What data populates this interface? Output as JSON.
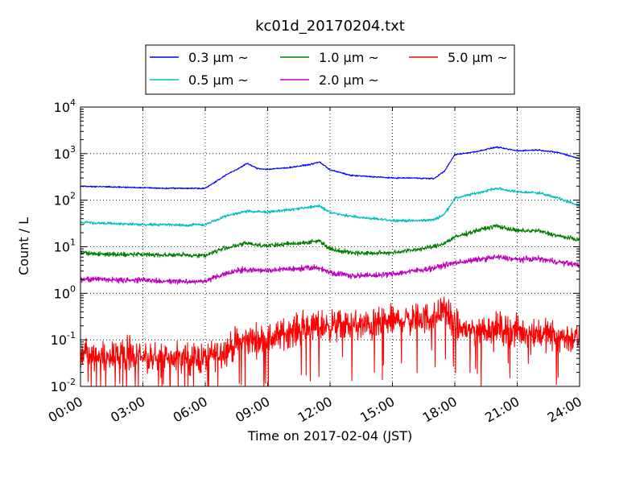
{
  "chart_data": {
    "type": "line",
    "title": "kc01d_20170204.txt",
    "xlabel": "Time on 2017-02-04 (JST)",
    "ylabel": "Count / L",
    "yscale": "log",
    "ylim": [
      0.01,
      10000
    ],
    "xlim": [
      "00:00",
      "24:00"
    ],
    "xticks": [
      "00:00",
      "03:00",
      "06:00",
      "09:00",
      "12:00",
      "15:00",
      "18:00",
      "21:00",
      "24:00"
    ],
    "yticks": [
      {
        "base": "10",
        "exp": "-2"
      },
      {
        "base": "10",
        "exp": "-1"
      },
      {
        "base": "10",
        "exp": "0"
      },
      {
        "base": "10",
        "exp": "1"
      },
      {
        "base": "10",
        "exp": "2"
      },
      {
        "base": "10",
        "exp": "3"
      },
      {
        "base": "10",
        "exp": "4"
      }
    ],
    "grid": true,
    "legend_position": "top-center",
    "x_hours": [
      0,
      1,
      2,
      3,
      4,
      5,
      6,
      6.5,
      7,
      7.5,
      8,
      8.5,
      9,
      10,
      11,
      11.5,
      12,
      13,
      14,
      15,
      16,
      17,
      17.5,
      18,
      19,
      20,
      21,
      22,
      23,
      24
    ],
    "series": [
      {
        "name": "0.3 µm ~",
        "color": "#0000ff",
        "noise": 0.012,
        "values": [
          200,
          195,
          190,
          185,
          180,
          180,
          180,
          250,
          350,
          450,
          620,
          480,
          460,
          500,
          580,
          660,
          450,
          340,
          320,
          300,
          300,
          290,
          420,
          950,
          1100,
          1380,
          1150,
          1200,
          1050,
          780
        ]
      },
      {
        "name": "0.5 µm ~",
        "color": "#00bfbf",
        "noise": 0.025,
        "values": [
          33,
          32,
          31,
          30,
          30,
          29,
          30,
          37,
          45,
          52,
          58,
          56,
          56,
          62,
          70,
          75,
          55,
          45,
          40,
          37,
          36,
          38,
          50,
          110,
          140,
          180,
          150,
          145,
          110,
          75
        ]
      },
      {
        "name": "1.0 µm ~",
        "color": "#008000",
        "noise": 0.04,
        "values": [
          7.5,
          7,
          6.8,
          6.8,
          6.7,
          6.6,
          6.5,
          8,
          9.5,
          10.5,
          12,
          11,
          10.5,
          11.5,
          12.5,
          13.5,
          9,
          7.5,
          7.2,
          7.5,
          8.5,
          10,
          12,
          16,
          22,
          28,
          22,
          22,
          17,
          14
        ]
      },
      {
        "name": "2.0 µm ~",
        "color": "#bf00bf",
        "noise": 0.05,
        "values": [
          2,
          2,
          1.9,
          1.9,
          1.85,
          1.8,
          1.8,
          2.2,
          2.7,
          3,
          3.2,
          3.1,
          3.1,
          3.3,
          3.5,
          3.5,
          2.8,
          2.4,
          2.4,
          2.6,
          3,
          3.5,
          4,
          4.5,
          5.2,
          6,
          5.3,
          5.5,
          4.7,
          4
        ]
      },
      {
        "name": "5.0 µm ~",
        "color": "#ff0000",
        "noise": 0.28,
        "values": [
          0.05,
          0.045,
          0.045,
          0.04,
          0.04,
          0.04,
          0.04,
          0.05,
          0.06,
          0.08,
          0.1,
          0.1,
          0.1,
          0.15,
          0.18,
          0.2,
          0.2,
          0.2,
          0.2,
          0.25,
          0.28,
          0.3,
          0.5,
          0.18,
          0.16,
          0.18,
          0.15,
          0.14,
          0.12,
          0.1
        ]
      }
    ]
  }
}
